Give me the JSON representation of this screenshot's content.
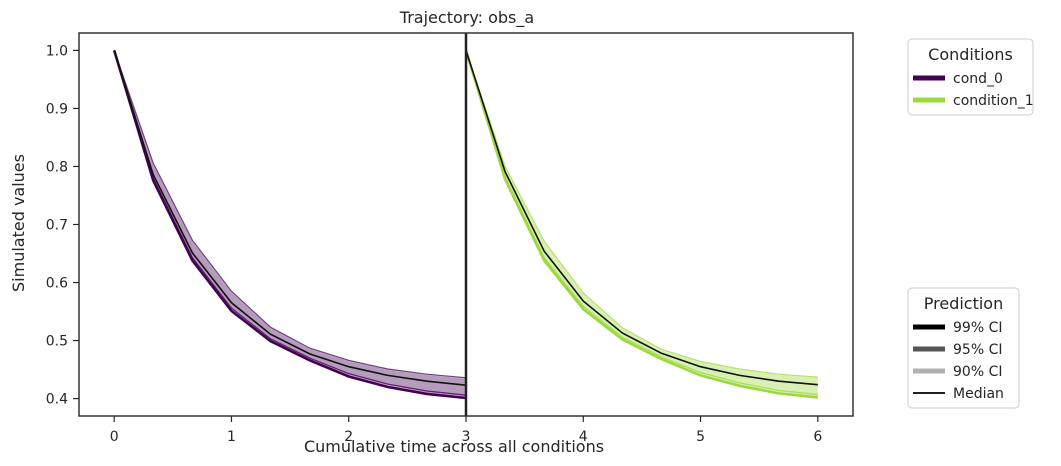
{
  "chart_data": {
    "type": "line",
    "title": "Trajectory: obs_a",
    "xlabel": "Cumulative time across all conditions",
    "ylabel": "Simulated values",
    "xlim": [
      -0.3,
      6.3
    ],
    "ylim": [
      0.37,
      1.03
    ],
    "xticks": [
      "0",
      "1",
      "2",
      "3",
      "4",
      "5",
      "6"
    ],
    "yticks": [
      "0.4",
      "0.5",
      "0.6",
      "0.7",
      "0.8",
      "0.9",
      "1.0"
    ],
    "condition_boundary": 3,
    "grid": false,
    "series": [
      {
        "name": "cond_0",
        "color": "#440154",
        "x": [
          0,
          0.333,
          0.667,
          1,
          1.333,
          1.667,
          2,
          2.333,
          2.667,
          3
        ],
        "median": [
          1.0,
          0.786,
          0.651,
          0.565,
          0.511,
          0.477,
          0.455,
          0.44,
          0.43,
          0.423
        ],
        "ci99_lower": [
          1.0,
          0.776,
          0.638,
          0.551,
          0.499,
          0.466,
          0.438,
          0.42,
          0.408,
          0.401
        ],
        "ci99_upper": [
          1.0,
          0.806,
          0.673,
          0.585,
          0.523,
          0.487,
          0.466,
          0.451,
          0.442,
          0.436
        ],
        "ci95_lower": [
          1.0,
          0.778,
          0.641,
          0.554,
          0.501,
          0.468,
          0.441,
          0.423,
          0.411,
          0.404
        ],
        "ci95_upper": [
          1.0,
          0.803,
          0.67,
          0.582,
          0.521,
          0.485,
          0.464,
          0.449,
          0.44,
          0.434
        ],
        "ci90_lower": [
          1.0,
          0.78,
          0.643,
          0.556,
          0.503,
          0.47,
          0.443,
          0.425,
          0.413,
          0.406
        ],
        "ci90_upper": [
          1.0,
          0.801,
          0.668,
          0.58,
          0.519,
          0.483,
          0.462,
          0.447,
          0.438,
          0.432
        ]
      },
      {
        "name": "condition_1",
        "color": "#9bd93c",
        "x": [
          3,
          3.333,
          3.667,
          4,
          4.333,
          4.667,
          5,
          5.333,
          5.667,
          6
        ],
        "median": [
          1.0,
          0.791,
          0.654,
          0.568,
          0.513,
          0.478,
          0.455,
          0.44,
          0.43,
          0.424
        ],
        "ci99_lower": [
          1.0,
          0.778,
          0.638,
          0.554,
          0.502,
          0.468,
          0.44,
          0.422,
          0.409,
          0.402
        ],
        "ci99_upper": [
          1.0,
          0.8,
          0.671,
          0.582,
          0.522,
          0.485,
          0.464,
          0.451,
          0.442,
          0.437
        ],
        "ci95_lower": [
          1.0,
          0.78,
          0.641,
          0.557,
          0.504,
          0.47,
          0.443,
          0.425,
          0.412,
          0.405
        ],
        "ci95_upper": [
          1.0,
          0.798,
          0.668,
          0.58,
          0.52,
          0.483,
          0.462,
          0.449,
          0.44,
          0.435
        ],
        "ci90_lower": [
          1.0,
          0.782,
          0.643,
          0.559,
          0.506,
          0.472,
          0.445,
          0.427,
          0.414,
          0.407
        ],
        "ci90_upper": [
          1.0,
          0.796,
          0.666,
          0.578,
          0.518,
          0.481,
          0.46,
          0.447,
          0.438,
          0.433
        ]
      }
    ],
    "legends": [
      {
        "title": "Conditions",
        "placement": "upper-right-outside",
        "entries": [
          {
            "label": "cond_0",
            "color": "#440154",
            "style": "thick"
          },
          {
            "label": "condition_1",
            "color": "#9bd93c",
            "style": "thick"
          }
        ]
      },
      {
        "title": "Prediction",
        "placement": "lower-right-outside",
        "entries": [
          {
            "label": "99% CI",
            "color": "#000000",
            "style": "thick"
          },
          {
            "label": "95% CI",
            "color": "#555555",
            "style": "thick"
          },
          {
            "label": "90% CI",
            "color": "#b0b0b0",
            "style": "thick"
          },
          {
            "label": "Median",
            "color": "#000000",
            "style": "thin"
          }
        ]
      }
    ]
  }
}
